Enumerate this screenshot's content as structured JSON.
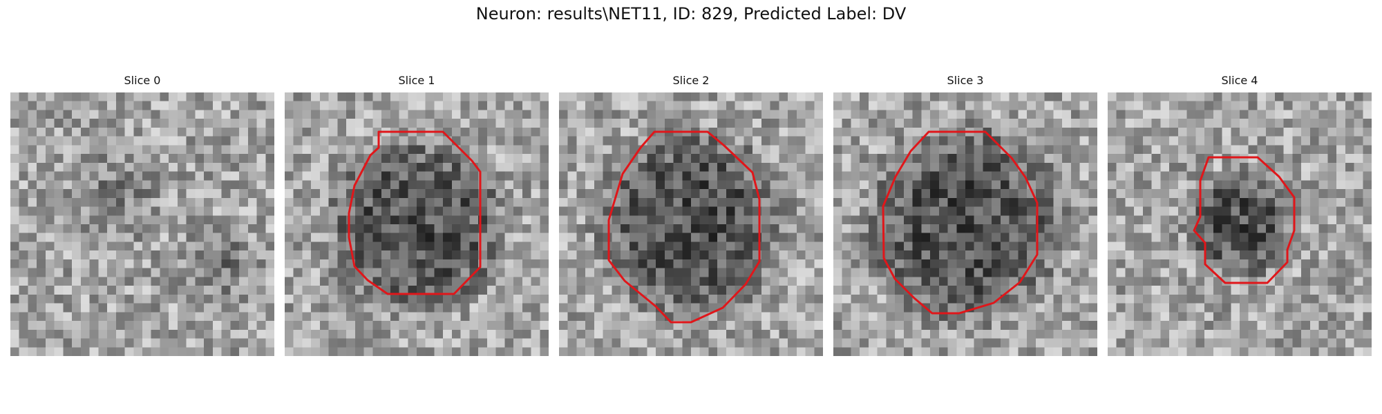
{
  "figure": {
    "title": "Neuron: results\\NET11, ID: 829, Predicted Label: DV",
    "outline_color": "#e0161a",
    "colormap": "gray"
  },
  "panels": [
    {
      "title": "Slice 0",
      "dark_blob_fraction": 0.3,
      "contour_radius_fraction": 0
    },
    {
      "title": "Slice 1",
      "dark_blob_fraction": 0.75,
      "contour_radius_fraction": 0.56
    },
    {
      "title": "Slice 2",
      "dark_blob_fraction": 0.8,
      "contour_radius_fraction": 0.62
    },
    {
      "title": "Slice 3",
      "dark_blob_fraction": 0.85,
      "contour_radius_fraction": 0.6
    },
    {
      "title": "Slice 4",
      "dark_blob_fraction": 0.45,
      "contour_radius_fraction": 0.38
    }
  ]
}
